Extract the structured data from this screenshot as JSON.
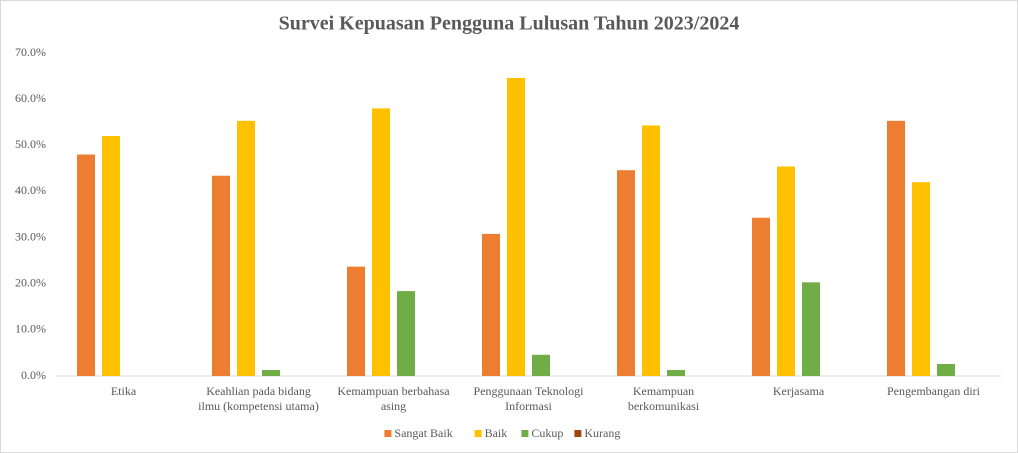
{
  "chart_data": {
    "type": "bar",
    "title": "Survei Kepuasan Pengguna Lulusan Tahun 2023/2024",
    "categories": [
      "Etika",
      "Keahlian pada bidang ilmu (kompetensi utama)",
      "Kemampuan berbahasa asing",
      "Penggunaan Teknologi Informasi",
      "Kemampuan berkomunikasi",
      "Kerjasama",
      "Pengembangan diri"
    ],
    "series": [
      {
        "name": "Sangat Baik",
        "color": "#ed7d31",
        "values": [
          48.0,
          43.4,
          23.7,
          30.8,
          44.6,
          34.3,
          55.3
        ]
      },
      {
        "name": "Baik",
        "color": "#ffc000",
        "values": [
          52.0,
          55.3,
          58.0,
          64.6,
          54.3,
          45.4,
          42.0
        ]
      },
      {
        "name": "Cukup",
        "color": "#70ad47",
        "values": [
          0,
          1.3,
          18.4,
          4.6,
          1.3,
          20.3,
          2.6
        ]
      },
      {
        "name": "Kurang",
        "color": "#9e480e",
        "values": [
          0,
          0,
          0,
          0,
          0,
          0,
          0
        ]
      }
    ],
    "ylim": [
      0,
      70
    ],
    "yticks": [
      {
        "value": 0,
        "label": "0.0%"
      },
      {
        "value": 10,
        "label": "10.0%"
      },
      {
        "value": 20,
        "label": "20.0%"
      },
      {
        "value": 30,
        "label": "30.0%"
      },
      {
        "value": 40,
        "label": "40.0%"
      },
      {
        "value": 50,
        "label": "50.0%"
      },
      {
        "value": 60,
        "label": "60.0%"
      },
      {
        "value": 70,
        "label": "70.0%"
      }
    ],
    "grid": false,
    "legend": "bottom"
  }
}
